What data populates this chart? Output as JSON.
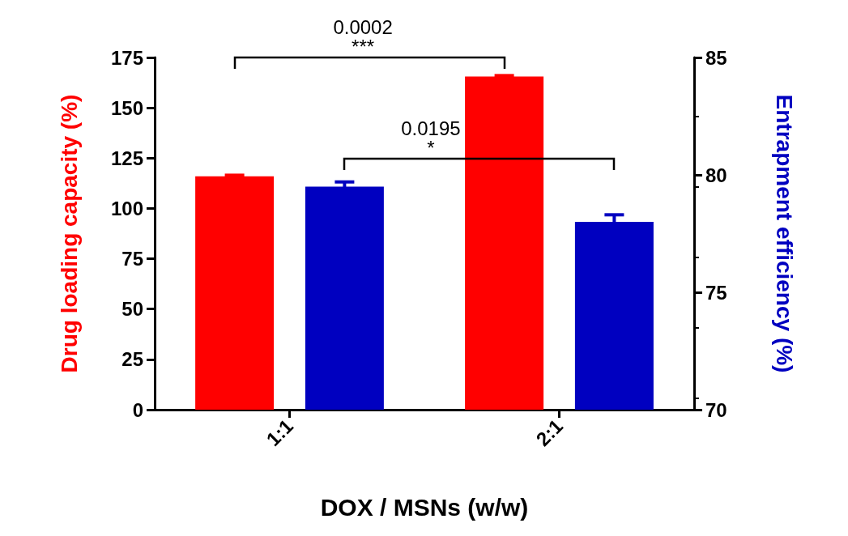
{
  "chart_data": {
    "type": "bar",
    "xlabel": "DOX / MSNs (w/w)",
    "ylabel": "Drug loading capacity (%)",
    "y2label": "Entrapment efficiency (%)",
    "categories": [
      "1:1",
      "2:1"
    ],
    "series": [
      {
        "color": "#ff0000",
        "values": [
          116,
          165.5
        ],
        "errors": [
          0.5,
          0.5
        ]
      },
      {
        "color": "#0000c0",
        "values": [
          79.5,
          78.0
        ],
        "errors": [
          0.2,
          0.3
        ],
        "axis": "y2"
      }
    ],
    "ylim": [
      0,
      175
    ],
    "yticks": [
      0,
      25,
      50,
      75,
      100,
      125,
      150,
      175
    ],
    "y2lim": [
      70,
      85
    ],
    "y2ticks": [
      70,
      75,
      80,
      85
    ],
    "annotations": [
      "0.0002",
      "***",
      "0.0195",
      "*"
    ]
  }
}
